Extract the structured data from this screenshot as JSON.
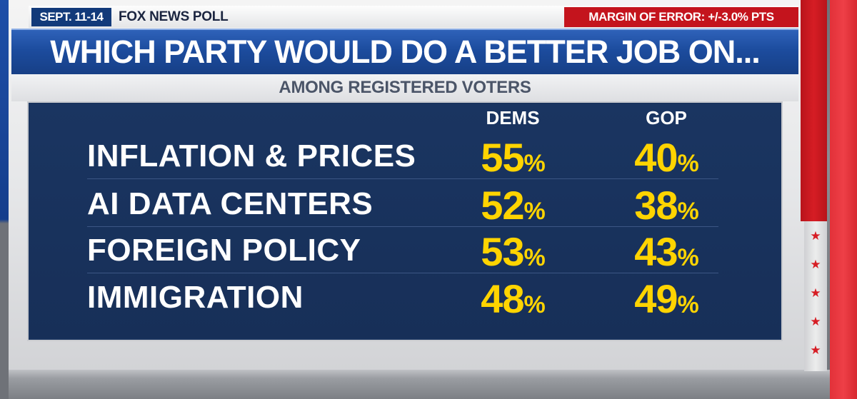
{
  "header": {
    "date": "SEPT. 11-14",
    "source": "FOX NEWS POLL",
    "margin_of_error": "MARGIN OF ERROR: +/-3.0% PTS"
  },
  "chart_data": {
    "type": "table",
    "title": "WHICH PARTY WOULD DO A BETTER JOB ON...",
    "subtitle": "AMONG REGISTERED VOTERS",
    "columns": [
      "DEMS",
      "GOP"
    ],
    "rows": [
      {
        "label": "INFLATION & PRICES",
        "dems": "55",
        "gop": "40"
      },
      {
        "label": "AI DATA CENTERS",
        "dems": "52",
        "gop": "38"
      },
      {
        "label": "FOREIGN POLICY",
        "dems": "53",
        "gop": "43"
      },
      {
        "label": "IMMIGRATION",
        "dems": "48",
        "gop": "49"
      }
    ],
    "unit": "%"
  },
  "decor": {
    "star_glyph": "★",
    "colors": {
      "value": "#ffd400",
      "panel": "#19335e",
      "accent_red": "#c4141d",
      "title_blue": "#1c4c9e"
    }
  }
}
